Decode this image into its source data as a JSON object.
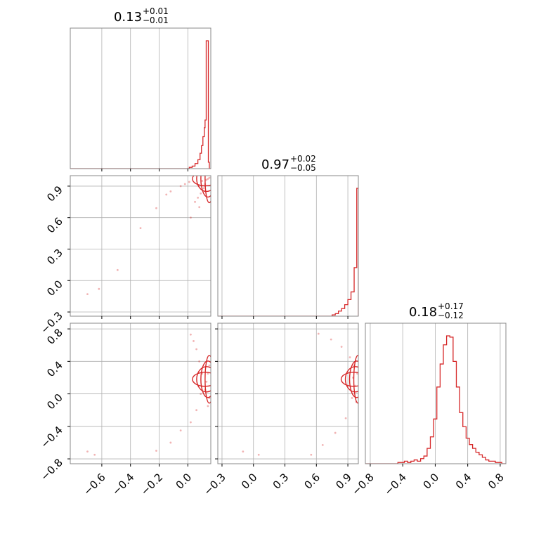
{
  "chart_data": {
    "type": "corner",
    "color": "#d62728",
    "parameters": [
      {
        "title_value": "0.13",
        "title_plus": "+0.01",
        "title_minus": "−0.01",
        "range": [
          -0.82,
          0.16
        ],
        "ticks": [
          -0.6,
          -0.4,
          -0.2,
          0.0
        ],
        "tick_labels": [
          "−0.6",
          "−0.4",
          "−0.2",
          "0.0"
        ]
      },
      {
        "title_value": "0.97",
        "title_plus": "+0.02",
        "title_minus": "−0.05",
        "range": [
          -0.34,
          1.0
        ],
        "ticks": [
          -0.3,
          0.0,
          0.3,
          0.6,
          0.9
        ],
        "tick_labels": [
          "−0.3",
          "0.0",
          "0.3",
          "0.6",
          "0.9"
        ]
      },
      {
        "title_value": "0.18",
        "title_plus": "+0.17",
        "title_minus": "−0.12",
        "range": [
          -0.86,
          0.87
        ],
        "ticks": [
          -0.8,
          -0.4,
          0.0,
          0.4,
          0.8
        ],
        "tick_labels": [
          "−0.8",
          "−0.4",
          "0.0",
          "0.4",
          "0.8"
        ]
      }
    ],
    "histograms": [
      {
        "param": 0,
        "bins": [
          0.0,
          0.01,
          0.02,
          0.04,
          0.07,
          0.12,
          0.18,
          0.25,
          0.32,
          0.38,
          1.0,
          0.05,
          0.0
        ],
        "bin_edges": [
          -0.02,
          0.01,
          0.03,
          0.05,
          0.07,
          0.085,
          0.095,
          0.105,
          0.115,
          0.12,
          0.128,
          0.143,
          0.15,
          0.16
        ]
      },
      {
        "param": 1,
        "bins": [
          0.0,
          0.01,
          0.02,
          0.04,
          0.06,
          0.09,
          0.13,
          0.19,
          0.38,
          1.0
        ],
        "bin_edges": [
          0.72,
          0.75,
          0.78,
          0.81,
          0.84,
          0.87,
          0.9,
          0.93,
          0.96,
          0.985,
          1.0
        ]
      },
      {
        "param": 2,
        "bin_edges": [
          -0.86,
          -0.82,
          -0.78,
          -0.74,
          -0.7,
          -0.66,
          -0.62,
          -0.58,
          -0.54,
          -0.5,
          -0.46,
          -0.42,
          -0.38,
          -0.34,
          -0.3,
          -0.26,
          -0.22,
          -0.18,
          -0.14,
          -0.1,
          -0.06,
          -0.02,
          0.02,
          0.06,
          0.1,
          0.14,
          0.18,
          0.22,
          0.26,
          0.3,
          0.34,
          0.38,
          0.42,
          0.46,
          0.5,
          0.54,
          0.58,
          0.62,
          0.66,
          0.7,
          0.74,
          0.78,
          0.82,
          0.86
        ],
        "bins": [
          0.0,
          0.0,
          0.0,
          0.0,
          0.0,
          0.0,
          0.0,
          0.0,
          0.0,
          0.0,
          0.01,
          0.01,
          0.02,
          0.01,
          0.02,
          0.03,
          0.02,
          0.04,
          0.06,
          0.12,
          0.21,
          0.35,
          0.6,
          0.78,
          0.93,
          1.0,
          0.99,
          0.8,
          0.6,
          0.4,
          0.29,
          0.2,
          0.15,
          0.12,
          0.09,
          0.07,
          0.05,
          0.03,
          0.02,
          0.02,
          0.01,
          0.01,
          0.0
        ]
      }
    ],
    "scatter_panels": [
      {
        "x_param": 0,
        "y_param": 1,
        "points": [
          [
            -0.7,
            -0.13
          ],
          [
            -0.62,
            -0.08
          ],
          [
            -0.49,
            0.1
          ],
          [
            -0.33,
            0.5
          ],
          [
            -0.22,
            0.69
          ],
          [
            -0.15,
            0.82
          ],
          [
            -0.12,
            0.85
          ],
          [
            -0.05,
            0.9
          ],
          [
            -0.02,
            0.92
          ],
          [
            0.01,
            0.94
          ],
          [
            0.02,
            0.6
          ],
          [
            0.05,
            0.75
          ],
          [
            0.07,
            0.79
          ],
          [
            0.09,
            0.83
          ],
          [
            0.11,
            0.88
          ],
          [
            0.12,
            0.9
          ],
          [
            0.13,
            0.96
          ],
          [
            0.14,
            0.97
          ],
          [
            0.15,
            0.98
          ],
          [
            0.1,
            0.95
          ],
          [
            0.12,
            0.92
          ],
          [
            0.08,
            0.7
          ]
        ]
      },
      {
        "x_param": 0,
        "y_param": 2,
        "points": [
          [
            -0.7,
            -0.71
          ],
          [
            -0.65,
            -0.75
          ],
          [
            -0.22,
            -0.7
          ],
          [
            -0.12,
            -0.6
          ],
          [
            -0.05,
            -0.45
          ],
          [
            0.02,
            -0.35
          ],
          [
            0.06,
            -0.2
          ],
          [
            0.09,
            0.0
          ],
          [
            0.1,
            0.25
          ],
          [
            0.08,
            0.4
          ],
          [
            0.06,
            0.55
          ],
          [
            0.04,
            0.65
          ],
          [
            0.02,
            0.73
          ],
          [
            0.12,
            0.05
          ],
          [
            0.13,
            0.15
          ],
          [
            0.14,
            0.25
          ],
          [
            0.15,
            0.35
          ],
          [
            0.15,
            -0.05
          ],
          [
            0.14,
            -0.15
          ]
        ]
      },
      {
        "x_param": 1,
        "y_param": 2,
        "points": [
          [
            -0.1,
            -0.71
          ],
          [
            0.05,
            -0.75
          ],
          [
            0.55,
            -0.75
          ],
          [
            0.66,
            -0.63
          ],
          [
            0.78,
            -0.48
          ],
          [
            0.88,
            -0.3
          ],
          [
            0.94,
            -0.05
          ],
          [
            0.95,
            0.2
          ],
          [
            0.92,
            0.45
          ],
          [
            0.84,
            0.58
          ],
          [
            0.74,
            0.67
          ],
          [
            0.62,
            0.74
          ],
          [
            0.96,
            0.35
          ],
          [
            0.97,
            0.1
          ],
          [
            0.98,
            -0.1
          ],
          [
            0.99,
            0.25
          ]
        ]
      }
    ]
  }
}
